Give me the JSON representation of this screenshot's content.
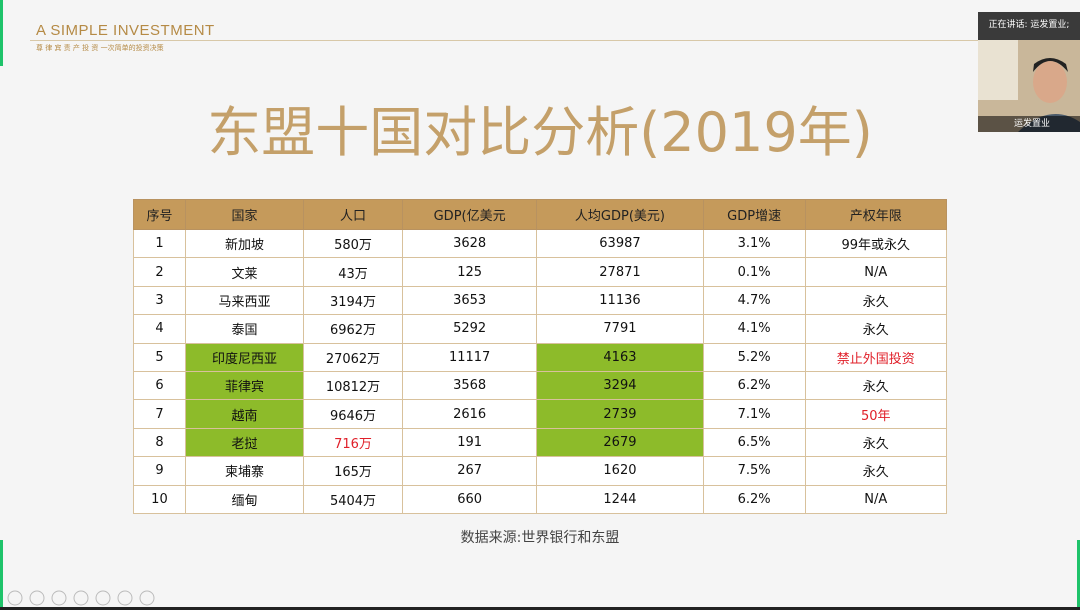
{
  "header": {
    "brand": "A SIMPLE INVESTMENT",
    "tagline": "尊 律 宾 责 产 投 资 一次简单的投资决策"
  },
  "slide": {
    "title": "东盟十国对比分析(2019年)",
    "source": "数据来源:世界银行和东盟"
  },
  "table": {
    "header": [
      "序号",
      "国家",
      "人口",
      "GDP(亿美元",
      "人均GDP(美元)",
      "GDP增速",
      "产权年限"
    ],
    "rows": [
      [
        "1",
        "新加坡",
        "580万",
        "3628",
        "63987",
        "3.1%",
        "99年或永久"
      ],
      [
        "2",
        "文莱",
        "43万",
        "125",
        "27871",
        "0.1%",
        "N/A"
      ],
      [
        "3",
        "马来西亚",
        "3194万",
        "3653",
        "11136",
        "4.7%",
        "永久"
      ],
      [
        "4",
        "泰国",
        "6962万",
        "5292",
        "7791",
        "4.1%",
        "永久"
      ],
      [
        "5",
        "印度尼西亚",
        "27062万",
        "11117",
        "4163",
        "5.2%",
        "禁止外国投资"
      ],
      [
        "6",
        "菲律宾",
        "10812万",
        "3568",
        "3294",
        "6.2%",
        "永久"
      ],
      [
        "7",
        "越南",
        "9646万",
        "2616",
        "2739",
        "7.1%",
        "50年"
      ],
      [
        "8",
        "老挝",
        "716万",
        "191",
        "2679",
        "6.5%",
        "永久"
      ],
      [
        "9",
        "柬埔寨",
        "165万",
        "267",
        "1620",
        "7.5%",
        "永久"
      ],
      [
        "10",
        "缅甸",
        "5404万",
        "660",
        "1244",
        "6.2%",
        "N/A"
      ]
    ]
  },
  "video": {
    "speaking": "正在讲话: 运发置业;",
    "name": "运发置业"
  }
}
